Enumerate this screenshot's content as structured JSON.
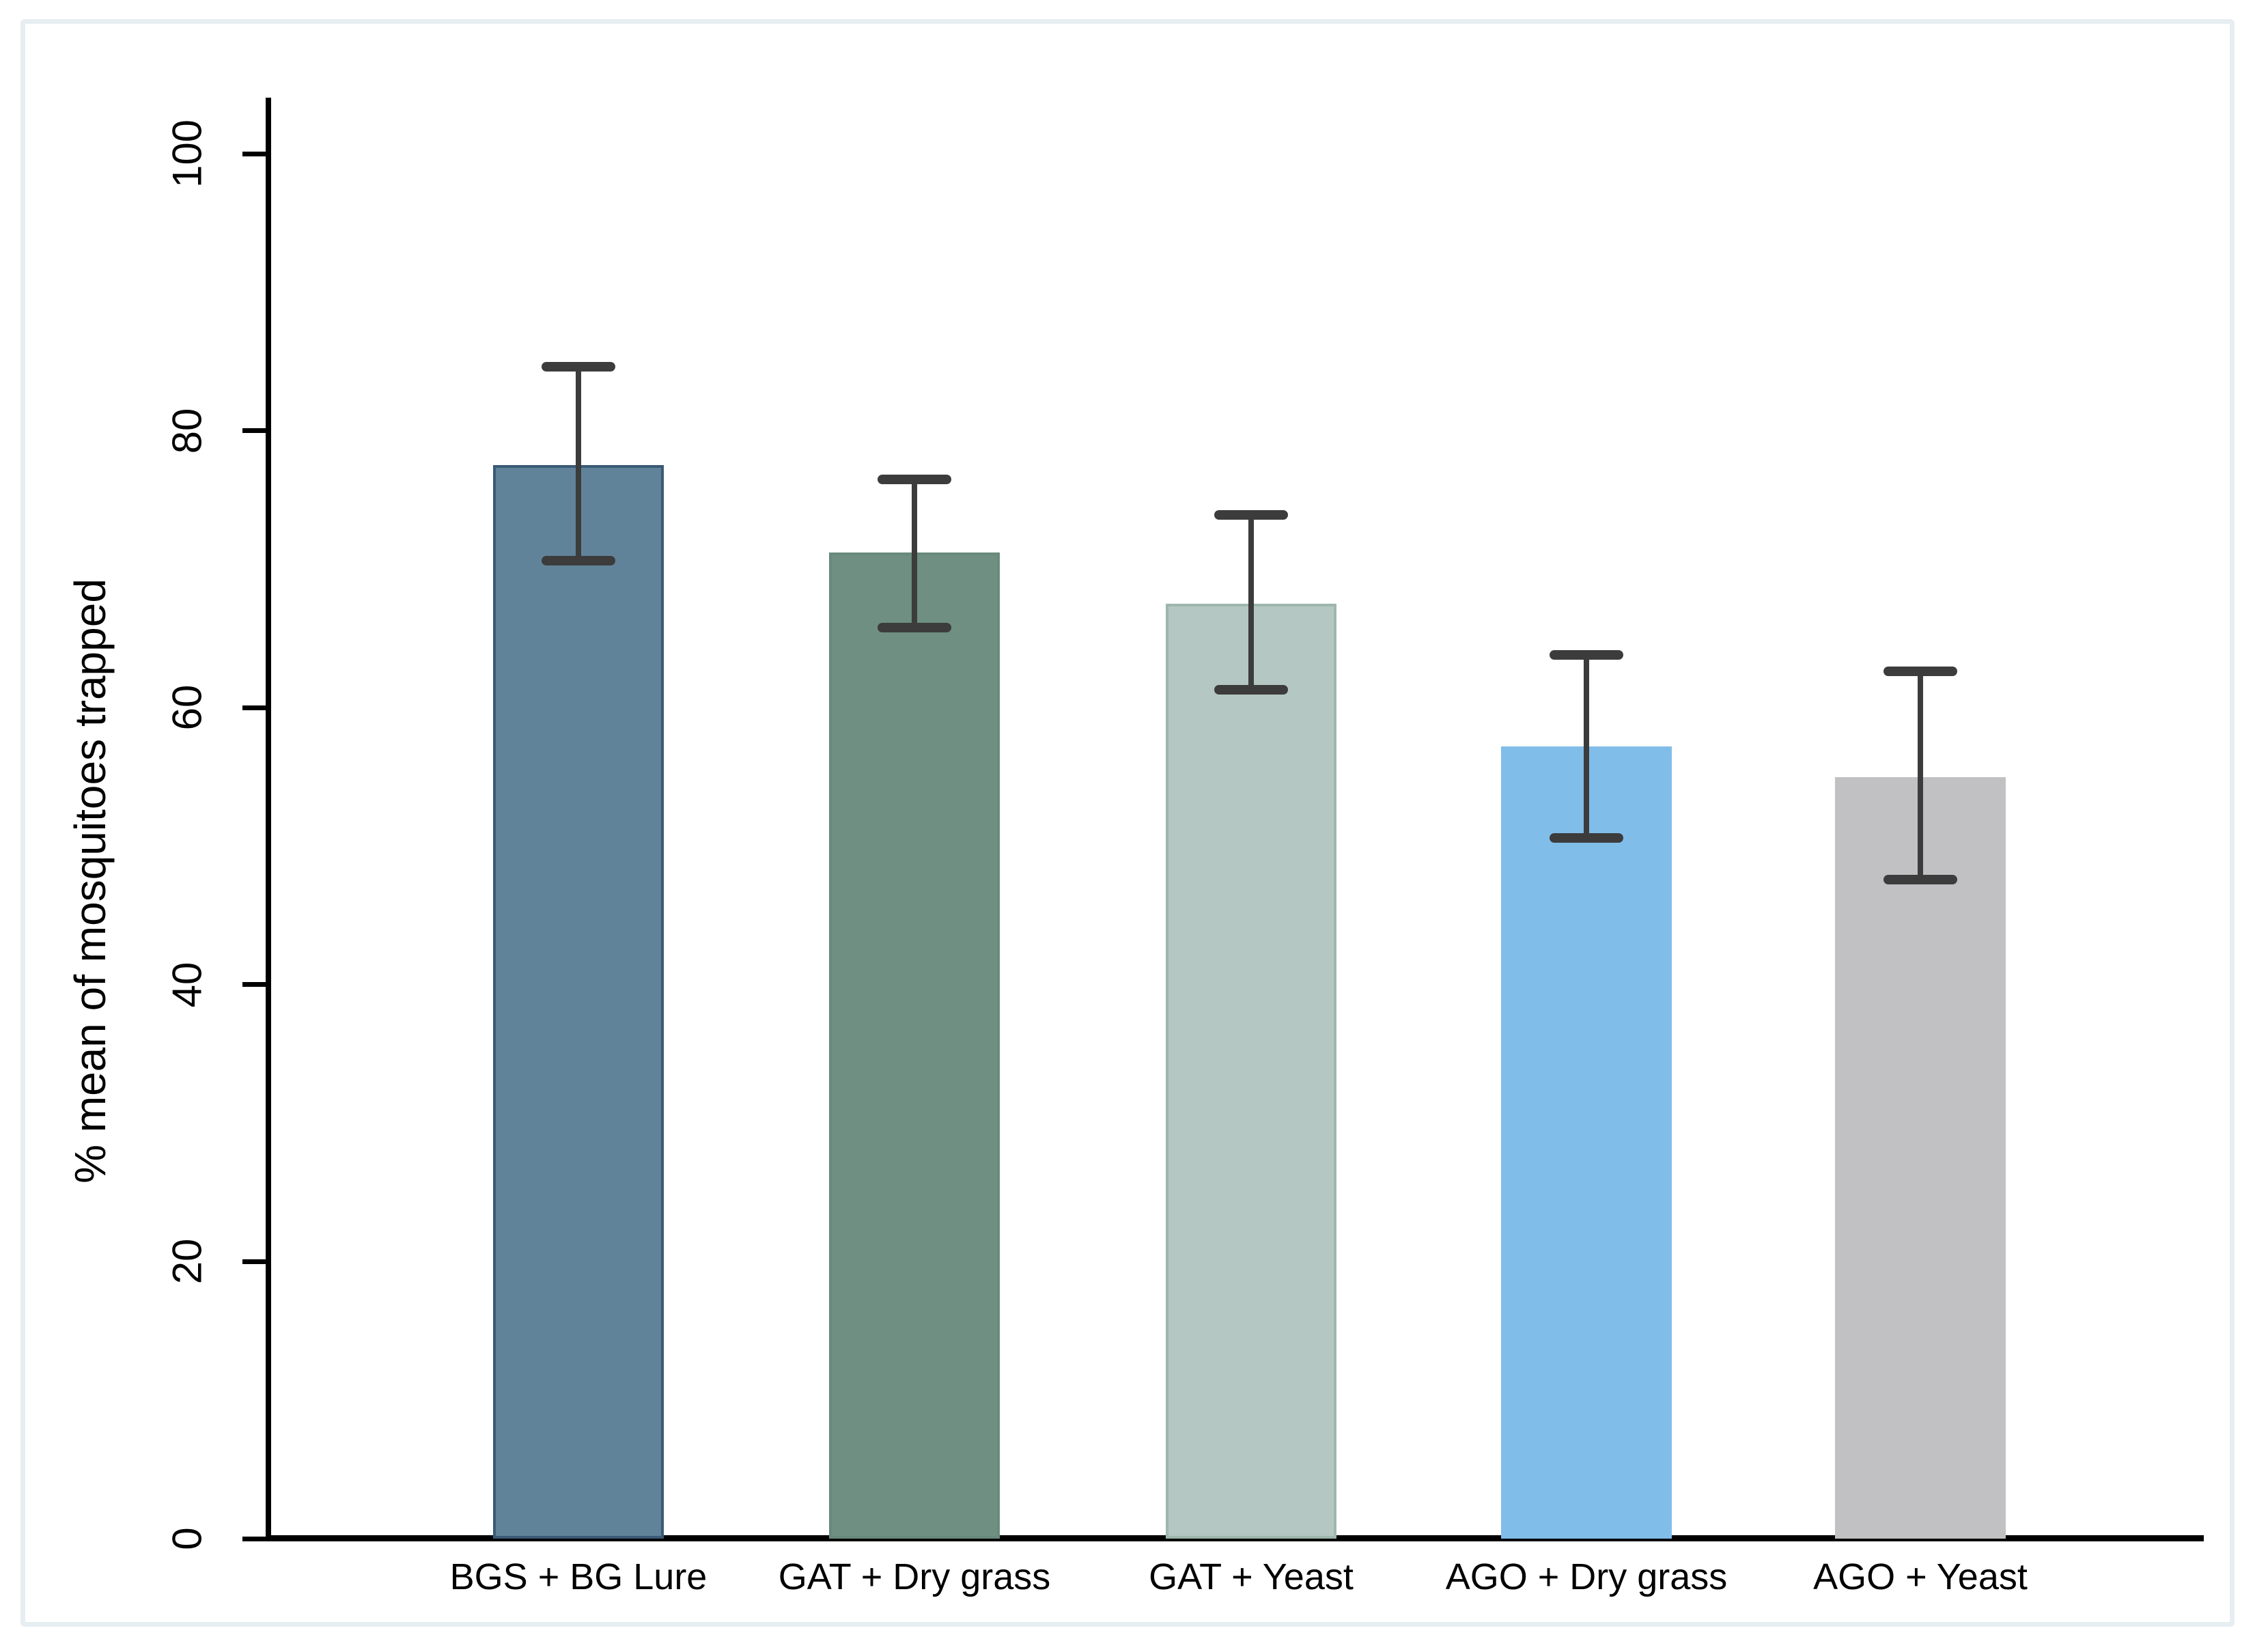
{
  "chart_data": {
    "type": "bar",
    "title": "",
    "xlabel": "",
    "ylabel": "% mean of mosquitoes trapped",
    "ylim": [
      0,
      100
    ],
    "yticks": [
      0,
      20,
      40,
      60,
      80,
      100
    ],
    "grid": false,
    "legend_position": "none",
    "categories": [
      "BGS + BG Lure",
      "GAT + Dry grass",
      "GAT + Yeast",
      "AGO + Dry grass",
      "AGO + Yeast"
    ],
    "series": [
      {
        "name": "% mean of mosquitoes trapped",
        "values": [
          77.5,
          71.2,
          67.5,
          57.2,
          55.0
        ],
        "error_low": [
          70.6,
          65.8,
          61.3,
          50.6,
          47.6
        ],
        "error_high": [
          84.6,
          76.5,
          73.9,
          63.8,
          62.6
        ]
      }
    ],
    "bar_colors": [
      "#61839A",
      "#6E8F81",
      "#B5C7C2",
      "#81BDE9",
      "#C1C1C3"
    ],
    "bar_border_colors": [
      "#3A5A77",
      "#688A7C",
      "#9DB7AC",
      "#81BDE9",
      "#C1C1C3"
    ],
    "error_bar_color": "#3C3C3C",
    "axis_color": "#000000",
    "frame_border_color": "#E7EEF2",
    "background_color": "#FFFFFF"
  }
}
